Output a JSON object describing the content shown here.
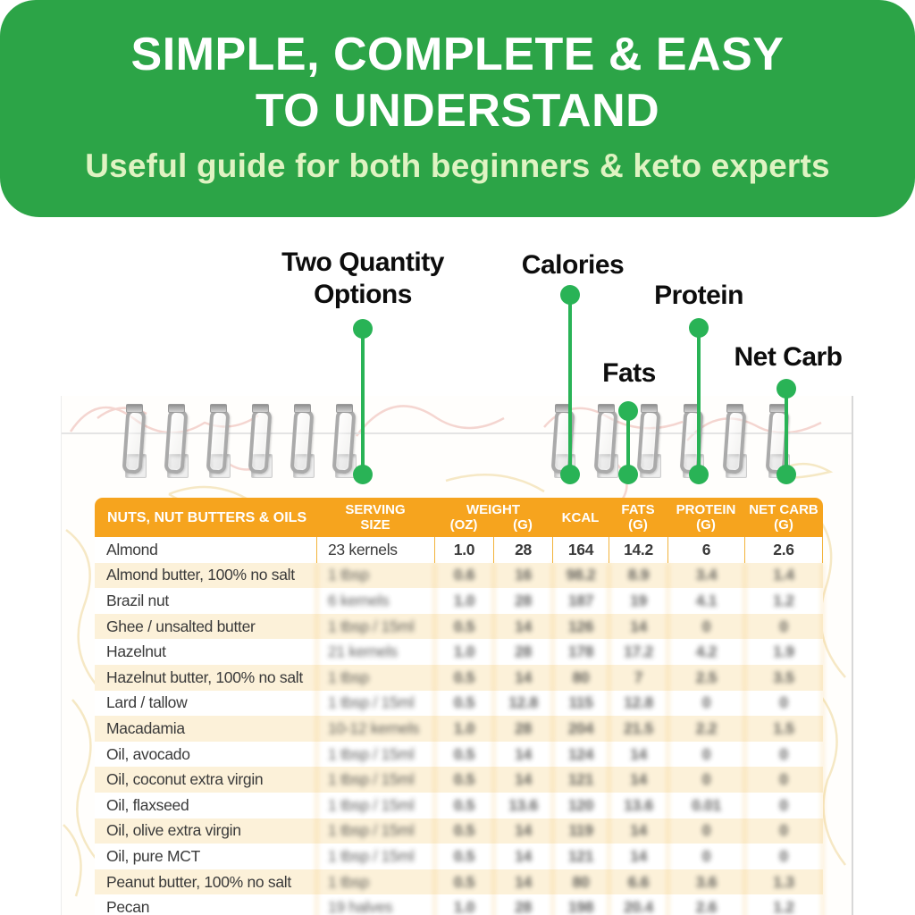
{
  "banner": {
    "title_line1": "SIMPLE, COMPLETE & EASY",
    "title_line2": "TO UNDERSTAND",
    "subtitle": "Useful guide for both beginners & keto experts"
  },
  "annotations": {
    "two_quantity_line1": "Two Quantity",
    "two_quantity_line2": "Options",
    "calories": "Calories",
    "fats": "Fats",
    "protein": "Protein",
    "net_carb": "Net Carb"
  },
  "colors": {
    "banner_green": "#2CA447",
    "subtitle_green": "#DFF3C2",
    "accent_green": "#29B356",
    "header_orange": "#F6A41E",
    "row_cream": "#FCF1D9",
    "grid_line_orange": "#F2B33B",
    "text_dark": "#3A3A3A"
  },
  "table": {
    "headers": {
      "col_food": "NUTS, NUT BUTTERS & OILS",
      "col_serving_l1": "SERVING",
      "col_serving_l2": "SIZE",
      "col_weight": "WEIGHT",
      "col_weight_oz": "(OZ)",
      "col_weight_g": "(G)",
      "col_kcal": "KCAL",
      "col_fats_l1": "FATS",
      "col_fats_l2": "(G)",
      "col_protein_l1": "PROTEIN",
      "col_protein_l2": "(G)",
      "col_netcarb_l1": "NET CARB",
      "col_netcarb_l2": "(G)"
    },
    "rows": [
      {
        "name": "Almond",
        "serving": "23 kernels",
        "oz": "1.0",
        "g": "28",
        "kcal": "164",
        "fats": "14.2",
        "protein": "6",
        "netcarb": "2.6",
        "blurred": false
      },
      {
        "name": "Almond butter, 100% no salt",
        "serving": "1 tbsp",
        "oz": "0.6",
        "g": "16",
        "kcal": "98.2",
        "fats": "8.9",
        "protein": "3.4",
        "netcarb": "1.4",
        "blurred": true
      },
      {
        "name": "Brazil nut",
        "serving": "6 kernels",
        "oz": "1.0",
        "g": "28",
        "kcal": "187",
        "fats": "19",
        "protein": "4.1",
        "netcarb": "1.2",
        "blurred": true
      },
      {
        "name": "Ghee / unsalted butter",
        "serving": "1 tbsp / 15ml",
        "oz": "0.5",
        "g": "14",
        "kcal": "126",
        "fats": "14",
        "protein": "0",
        "netcarb": "0",
        "blurred": true
      },
      {
        "name": "Hazelnut",
        "serving": "21 kernels",
        "oz": "1.0",
        "g": "28",
        "kcal": "178",
        "fats": "17.2",
        "protein": "4.2",
        "netcarb": "1.9",
        "blurred": true
      },
      {
        "name": "Hazelnut butter, 100% no salt",
        "serving": "1 tbsp",
        "oz": "0.5",
        "g": "14",
        "kcal": "80",
        "fats": "7",
        "protein": "2.5",
        "netcarb": "3.5",
        "blurred": true
      },
      {
        "name": "Lard / tallow",
        "serving": "1 tbsp / 15ml",
        "oz": "0.5",
        "g": "12.8",
        "kcal": "115",
        "fats": "12.8",
        "protein": "0",
        "netcarb": "0",
        "blurred": true
      },
      {
        "name": "Macadamia",
        "serving": "10-12 kernels",
        "oz": "1.0",
        "g": "28",
        "kcal": "204",
        "fats": "21.5",
        "protein": "2.2",
        "netcarb": "1.5",
        "blurred": true
      },
      {
        "name": "Oil, avocado",
        "serving": "1 tbsp / 15ml",
        "oz": "0.5",
        "g": "14",
        "kcal": "124",
        "fats": "14",
        "protein": "0",
        "netcarb": "0",
        "blurred": true
      },
      {
        "name": "Oil, coconut extra virgin",
        "serving": "1 tbsp / 15ml",
        "oz": "0.5",
        "g": "14",
        "kcal": "121",
        "fats": "14",
        "protein": "0",
        "netcarb": "0",
        "blurred": true
      },
      {
        "name": "Oil, flaxseed",
        "serving": "1 tbsp / 15ml",
        "oz": "0.5",
        "g": "13.6",
        "kcal": "120",
        "fats": "13.6",
        "protein": "0.01",
        "netcarb": "0",
        "blurred": true
      },
      {
        "name": "Oil, olive extra virgin",
        "serving": "1 tbsp / 15ml",
        "oz": "0.5",
        "g": "14",
        "kcal": "119",
        "fats": "14",
        "protein": "0",
        "netcarb": "0",
        "blurred": true
      },
      {
        "name": "Oil, pure MCT",
        "serving": "1 tbsp / 15ml",
        "oz": "0.5",
        "g": "14",
        "kcal": "121",
        "fats": "14",
        "protein": "0",
        "netcarb": "0",
        "blurred": true
      },
      {
        "name": "Peanut butter, 100% no salt",
        "serving": "1 tbsp",
        "oz": "0.5",
        "g": "14",
        "kcal": "80",
        "fats": "6.6",
        "protein": "3.6",
        "netcarb": "1.3",
        "blurred": true
      },
      {
        "name": "Pecan",
        "serving": "19 halves",
        "oz": "1.0",
        "g": "28",
        "kcal": "198",
        "fats": "20.4",
        "protein": "2.6",
        "netcarb": "1.2",
        "blurred": true
      }
    ]
  }
}
